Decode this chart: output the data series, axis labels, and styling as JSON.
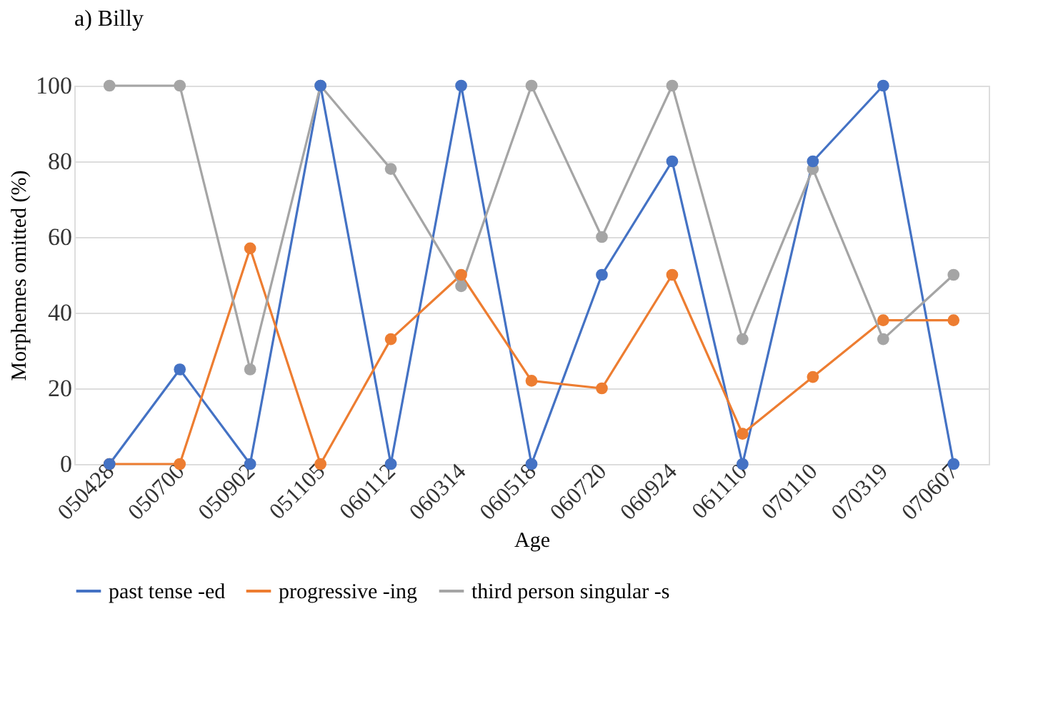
{
  "chart_data": {
    "type": "line",
    "title": "a) Billy",
    "xlabel": "Age",
    "ylabel": "Morphemes omitted (%)",
    "categories": [
      "050428",
      "050700",
      "050902",
      "051105",
      "060112",
      "060314",
      "060518",
      "060720",
      "060924",
      "061110",
      "070110",
      "070319",
      "070607"
    ],
    "series": [
      {
        "name": "past tense -ed",
        "color": "#4472c4",
        "values": [
          0,
          25,
          0,
          100,
          0,
          100,
          0,
          50,
          80,
          0,
          80,
          100,
          0
        ]
      },
      {
        "name": "progressive -ing",
        "color": "#ed7d31",
        "values": [
          0,
          0,
          57,
          0,
          33,
          50,
          22,
          20,
          50,
          8,
          23,
          38,
          38
        ]
      },
      {
        "name": "third person singular -s",
        "color": "#a5a5a5",
        "values": [
          100,
          100,
          25,
          100,
          78,
          47,
          100,
          60,
          100,
          33,
          78,
          33,
          50
        ]
      }
    ],
    "ylim": [
      0,
      100
    ],
    "yticks": [
      0,
      20,
      40,
      60,
      80,
      100
    ],
    "grid": "y",
    "legend": "bottom",
    "marker": "circle",
    "line_style": "solid"
  }
}
